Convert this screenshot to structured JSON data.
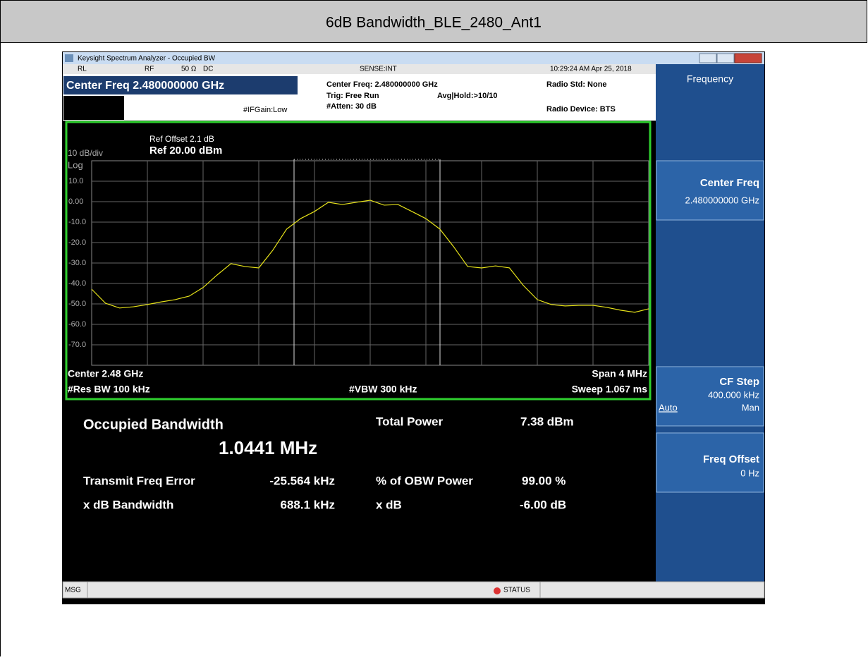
{
  "header": {
    "title": "6dB Bandwidth_BLE_2480_Ant1"
  },
  "window": {
    "title": "Keysight Spectrum Analyzer - Occupied BW"
  },
  "status_row": [
    "RL",
    "RF",
    "50 Ω",
    "DC",
    "SENSE:INT",
    "10:29:24 AM Apr 25, 2018"
  ],
  "settings": {
    "center_freq": "Center Freq 2.480000000 GHz",
    "if_gain": "#IFGain:Low",
    "center_freq_info": "Center Freq: 2.480000000 GHz",
    "trig": "Trig: Free Run",
    "avg_hold": "Avg|Hold:>10/10",
    "atten": "#Atten: 30 dB",
    "radio_std": "Radio Std: None",
    "radio_device": "Radio Device: BTS"
  },
  "chart_data": {
    "type": "line",
    "ref_offset": "Ref Offset 2.1 dB",
    "ref_level": "Ref 20.00 dBm",
    "scale": "10 dB/div",
    "scale_type": "Log",
    "values": [
      -42.8,
      -49.7,
      -52,
      -51.4,
      -50.3,
      -49,
      -47.9,
      -46.2,
      -42,
      -35.9,
      -30.3,
      -31.7,
      -32.4,
      -23.8,
      -13.4,
      -8.3,
      -4.8,
      -0.3,
      -1.4,
      -0.3,
      0.7,
      -1.7,
      -1.4,
      -4.8,
      -8.3,
      -13.4,
      -22.1,
      -31.7,
      -32.4,
      -31.4,
      -32.4,
      -41,
      -47.9,
      -50.3,
      -51,
      -50.7,
      -50.7,
      -51.7,
      -53.1,
      -54.1,
      -52.4
    ],
    "color": "#e6e21a",
    "ylim": [
      -80,
      20
    ],
    "yticks": [
      {
        "value": 10,
        "label": "10.0"
      },
      {
        "value": 0,
        "label": "0.00"
      },
      {
        "value": -10,
        "label": "-10.0"
      },
      {
        "value": -20,
        "label": "-20.0"
      },
      {
        "value": -30,
        "label": "-30.0"
      },
      {
        "value": -40,
        "label": "-40.0"
      },
      {
        "value": -50,
        "label": "-50.0"
      },
      {
        "value": -60,
        "label": "-60.0"
      },
      {
        "value": -70,
        "label": "-70.0"
      }
    ],
    "grid": true,
    "footer": {
      "center": "Center  2.48 GHz",
      "span": "Span 4 MHz",
      "rbw": "#Res BW  100 kHz",
      "vbw": "#VBW  300 kHz",
      "sweep": "Sweep  1.067 ms"
    }
  },
  "results": {
    "title": "Occupied Bandwidth",
    "value": "1.0441 MHz",
    "items": [
      [
        "Total Power",
        "7.38 dBm"
      ],
      [
        "Transmit Freq Error",
        "-25.564 kHz"
      ],
      [
        "% of OBW Power",
        "99.00 %"
      ],
      [
        "x dB Bandwidth",
        "688.1 kHz"
      ],
      [
        "x dB",
        "-6.00 dB"
      ]
    ]
  },
  "softkeys": {
    "menu": "Frequency",
    "keys": [
      {
        "label": "Center Freq",
        "value": "2.480000000 GHz"
      },
      {
        "label": "CF Step",
        "value": "400.000 kHz",
        "options": [
          "Auto",
          "Man"
        ]
      },
      {
        "label": "Freq Offset",
        "value": "0 Hz"
      }
    ]
  },
  "status_bar": {
    "msg": "MSG",
    "status": "STATUS"
  }
}
